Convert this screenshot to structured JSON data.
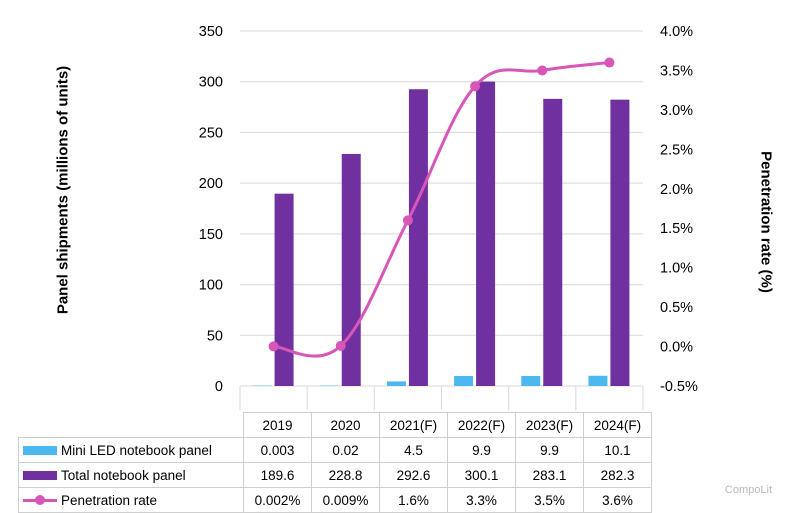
{
  "chart_data": {
    "type": "bar+line",
    "categories": [
      "2019",
      "2020",
      "2021(F)",
      "2022(F)",
      "2023(F)",
      "2024(F)"
    ],
    "ylabel_left": "Panel shipments (millions of units)",
    "ylabel_right": "Penetration rate (%)",
    "ylim_left": [
      0,
      350
    ],
    "yticks_left": [
      "0",
      "50",
      "100",
      "150",
      "200",
      "250",
      "300",
      "350"
    ],
    "ylim_right": [
      -0.5,
      4.0
    ],
    "yticks_right": [
      "-0.5%",
      "0.0%",
      "0.5%",
      "1.0%",
      "1.5%",
      "2.0%",
      "2.5%",
      "3.0%",
      "3.5%",
      "4.0%"
    ],
    "grid": true,
    "series": [
      {
        "name": "Mini LED notebook panel",
        "kind": "bar",
        "axis": "left",
        "color": "#4db8f0",
        "values": [
          0.003,
          0.02,
          4.5,
          9.9,
          9.9,
          10.1
        ],
        "labels": [
          "0.003",
          "0.02",
          "4.5",
          "9.9",
          "9.9",
          "10.1"
        ]
      },
      {
        "name": "Total notebook panel",
        "kind": "bar",
        "axis": "left",
        "color": "#7030a0",
        "values": [
          189.6,
          228.8,
          292.6,
          300.1,
          283.1,
          282.3
        ],
        "labels": [
          "189.6",
          "228.8",
          "292.6",
          "300.1",
          "283.1",
          "282.3"
        ]
      },
      {
        "name": "Penetration rate",
        "kind": "line",
        "axis": "right",
        "color": "#d856b8",
        "values": [
          0.002,
          0.009,
          1.6,
          3.3,
          3.5,
          3.6
        ],
        "labels": [
          "0.002%",
          "0.009%",
          "1.6%",
          "3.3%",
          "3.5%",
          "3.6%"
        ]
      }
    ]
  },
  "watermark": "CompoLit"
}
